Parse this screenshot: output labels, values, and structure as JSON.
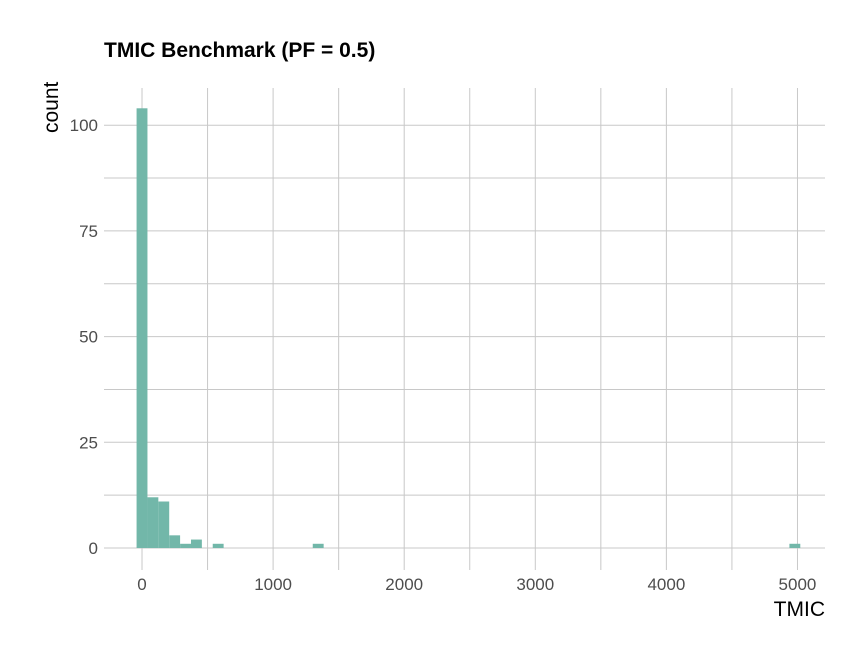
{
  "chart_data": {
    "type": "bar",
    "title": "TMIC Benchmark (PF = 0.5)",
    "xlabel": "TMIC",
    "ylabel": "count",
    "bin_width": 83,
    "bins": [
      {
        "x": 0,
        "count": 104
      },
      {
        "x": 83,
        "count": 12
      },
      {
        "x": 166,
        "count": 11
      },
      {
        "x": 249,
        "count": 3
      },
      {
        "x": 332,
        "count": 1
      },
      {
        "x": 415,
        "count": 2
      },
      {
        "x": 581,
        "count": 1
      },
      {
        "x": 1344,
        "count": 1
      },
      {
        "x": 4980,
        "count": 1
      }
    ],
    "xlim": [
      -290,
      5210
    ],
    "ylim": [
      -5.2,
      108.8
    ],
    "x_ticks": [
      0,
      1000,
      2000,
      3000,
      4000,
      5000
    ],
    "x_tick_labels": [
      "0",
      "1000",
      "2000",
      "3000",
      "4000",
      "5000"
    ],
    "y_ticks": [
      0,
      25,
      50,
      75,
      100
    ],
    "y_tick_labels": [
      "0",
      "25",
      "50",
      "75",
      "100"
    ],
    "bar_color": "#72B7A9",
    "grid": true,
    "legend": "none"
  }
}
